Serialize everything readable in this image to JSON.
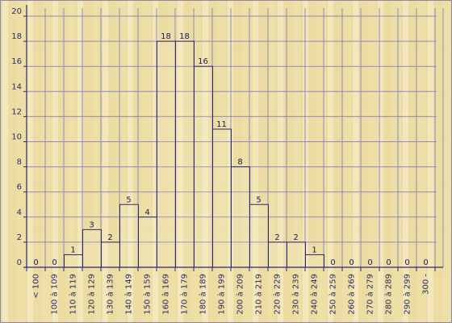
{
  "chart_data": {
    "type": "bar",
    "categories": [
      "< 100",
      "100 à 109",
      "110 à 119",
      "120 à 129",
      "130 à 139",
      "140 à 149",
      "150 à 159",
      "160 à 169",
      "170 à 179",
      "180 à 189",
      "190 à 199",
      "200 à 209",
      "210 à 219",
      "220 à 229",
      "230 à 239",
      "240 à 249",
      "250 à 259",
      "260 à 269",
      "270 à 279",
      "280 à 289",
      "290 à 299",
      "300 -"
    ],
    "values": [
      0,
      0,
      1,
      3,
      2,
      5,
      4,
      18,
      18,
      16,
      11,
      8,
      5,
      2,
      2,
      1,
      0,
      0,
      0,
      0,
      0,
      0
    ],
    "yticks": [
      0,
      2,
      4,
      6,
      8,
      10,
      12,
      14,
      16,
      18,
      20
    ],
    "ylim": [
      0,
      20
    ],
    "grid": true,
    "colors": {
      "bar_stroke": "#2d2a6e",
      "axis": "#2d2a6e",
      "grid": "#8e8bb8",
      "text": "#2d2a66"
    }
  }
}
